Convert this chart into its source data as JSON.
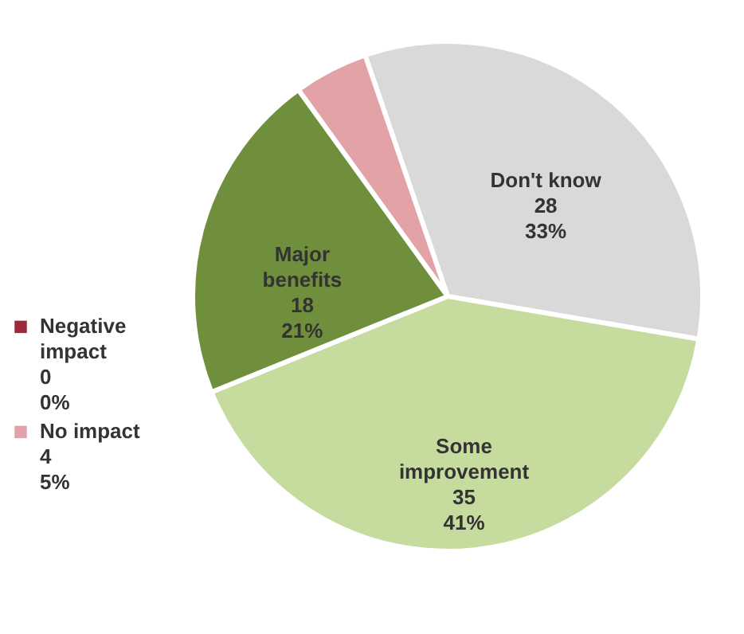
{
  "chart_data": {
    "type": "pie",
    "categories": [
      "Don't know",
      "Some improvement",
      "Major benefits",
      "Negative impact",
      "No impact"
    ],
    "values": [
      28,
      35,
      18,
      0,
      4
    ],
    "value_labels": [
      "28\n33%",
      "35\n41%",
      "18\n21%",
      "0\n0%",
      "4\n5%"
    ],
    "colors": [
      "#d9d9d9",
      "#c5dc9e",
      "#6f8f3c",
      "#9c2a3a",
      "#e3a3a6"
    ]
  }
}
